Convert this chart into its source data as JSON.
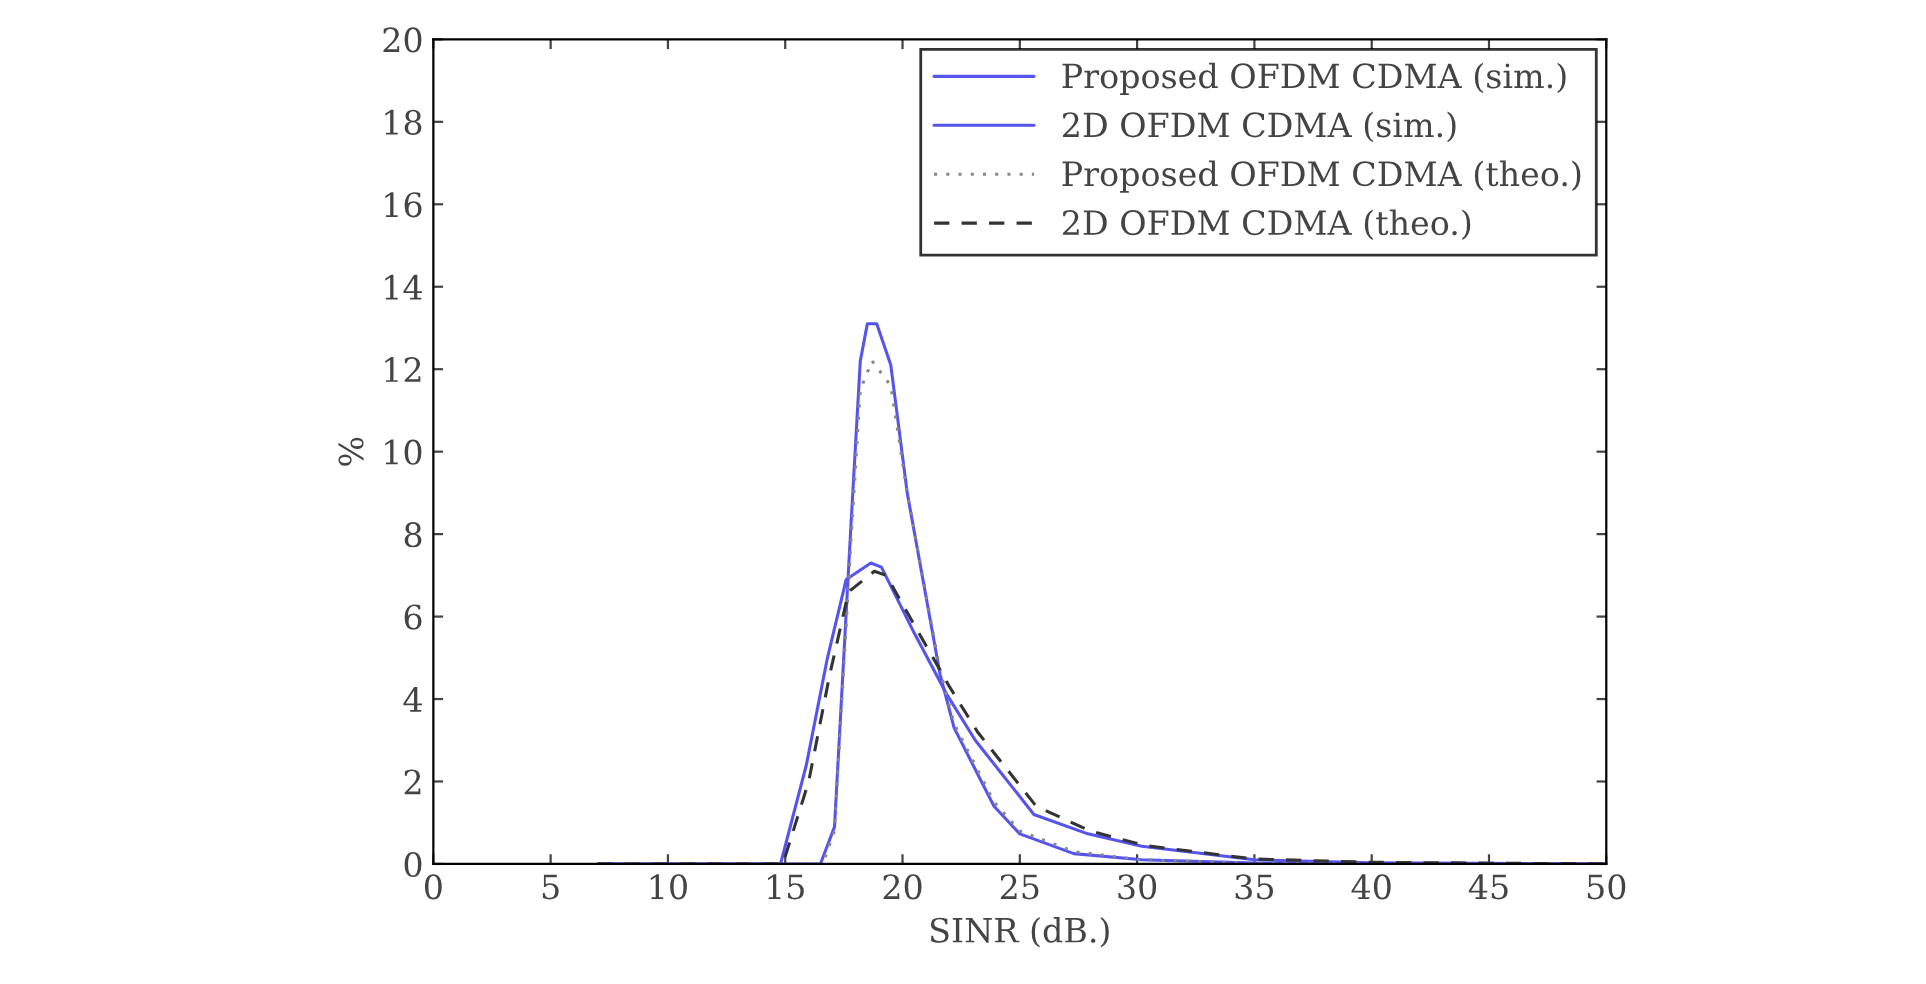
{
  "chart_data": {
    "type": "line",
    "xlabel": "SINR (dB.)",
    "ylabel": "%",
    "xlim": [
      0,
      50
    ],
    "ylim": [
      0,
      20
    ],
    "xticks": [
      0,
      5,
      10,
      15,
      20,
      25,
      30,
      35,
      40,
      45,
      50
    ],
    "yticks": [
      0,
      2,
      4,
      6,
      8,
      10,
      12,
      14,
      16,
      18,
      20
    ],
    "grid": false,
    "legend": "top right",
    "series": [
      {
        "name": "Proposed OFDM CDMA (sim.)",
        "color": "#5555ee",
        "line_style": "solid",
        "x": [
          7,
          12,
          16.5,
          17.1,
          17.8,
          18.2,
          18.5,
          18.9,
          19.5,
          20.2,
          21.6,
          22.2,
          23.9,
          25,
          27.3,
          30.2,
          35,
          40,
          50
        ],
        "values": [
          0,
          0,
          0,
          0.9,
          8.2,
          12.2,
          13.1,
          13.1,
          12.1,
          9.0,
          4.6,
          3.3,
          1.4,
          0.73,
          0.25,
          0.1,
          0.02,
          0,
          0
        ]
      },
      {
        "name": "2D OFDM CDMA (sim.)",
        "color": "#5555ee",
        "line_style": "solid",
        "x": [
          7,
          12,
          14.8,
          15.9,
          16.8,
          17.6,
          18.65,
          19.1,
          20.5,
          21.9,
          23.1,
          25.6,
          27.9,
          30.2,
          35,
          40,
          50
        ],
        "values": [
          0,
          0,
          0,
          2.4,
          5.0,
          6.9,
          7.3,
          7.2,
          5.6,
          4.1,
          3.0,
          1.2,
          0.73,
          0.43,
          0.1,
          0.03,
          0
        ]
      },
      {
        "name": "Proposed OFDM CDMA (theo.)",
        "color": "#888888",
        "line_style": "dotted",
        "x": [
          7,
          12,
          16.6,
          17.1,
          17.8,
          18.2,
          18.7,
          19.5,
          20.2,
          21.6,
          22.2,
          23.9,
          25,
          27.3,
          30.2,
          35,
          40,
          50
        ],
        "values": [
          0,
          0,
          0,
          0.8,
          7.8,
          11.5,
          12.2,
          11.6,
          9.0,
          4.7,
          3.4,
          1.5,
          0.8,
          0.3,
          0.1,
          0.02,
          0,
          0
        ]
      },
      {
        "name": "2D OFDM CDMA (theo.)",
        "color": "#333333",
        "line_style": "dashed",
        "x": [
          7,
          12,
          14.9,
          16.0,
          16.9,
          17.7,
          18.8,
          19.3,
          20.6,
          22.0,
          23.2,
          25.7,
          28.0,
          30.3,
          35,
          40,
          50
        ],
        "values": [
          0,
          0,
          0,
          2.0,
          4.6,
          6.6,
          7.1,
          7.0,
          5.7,
          4.3,
          3.2,
          1.4,
          0.8,
          0.45,
          0.12,
          0.04,
          0
        ]
      }
    ]
  }
}
